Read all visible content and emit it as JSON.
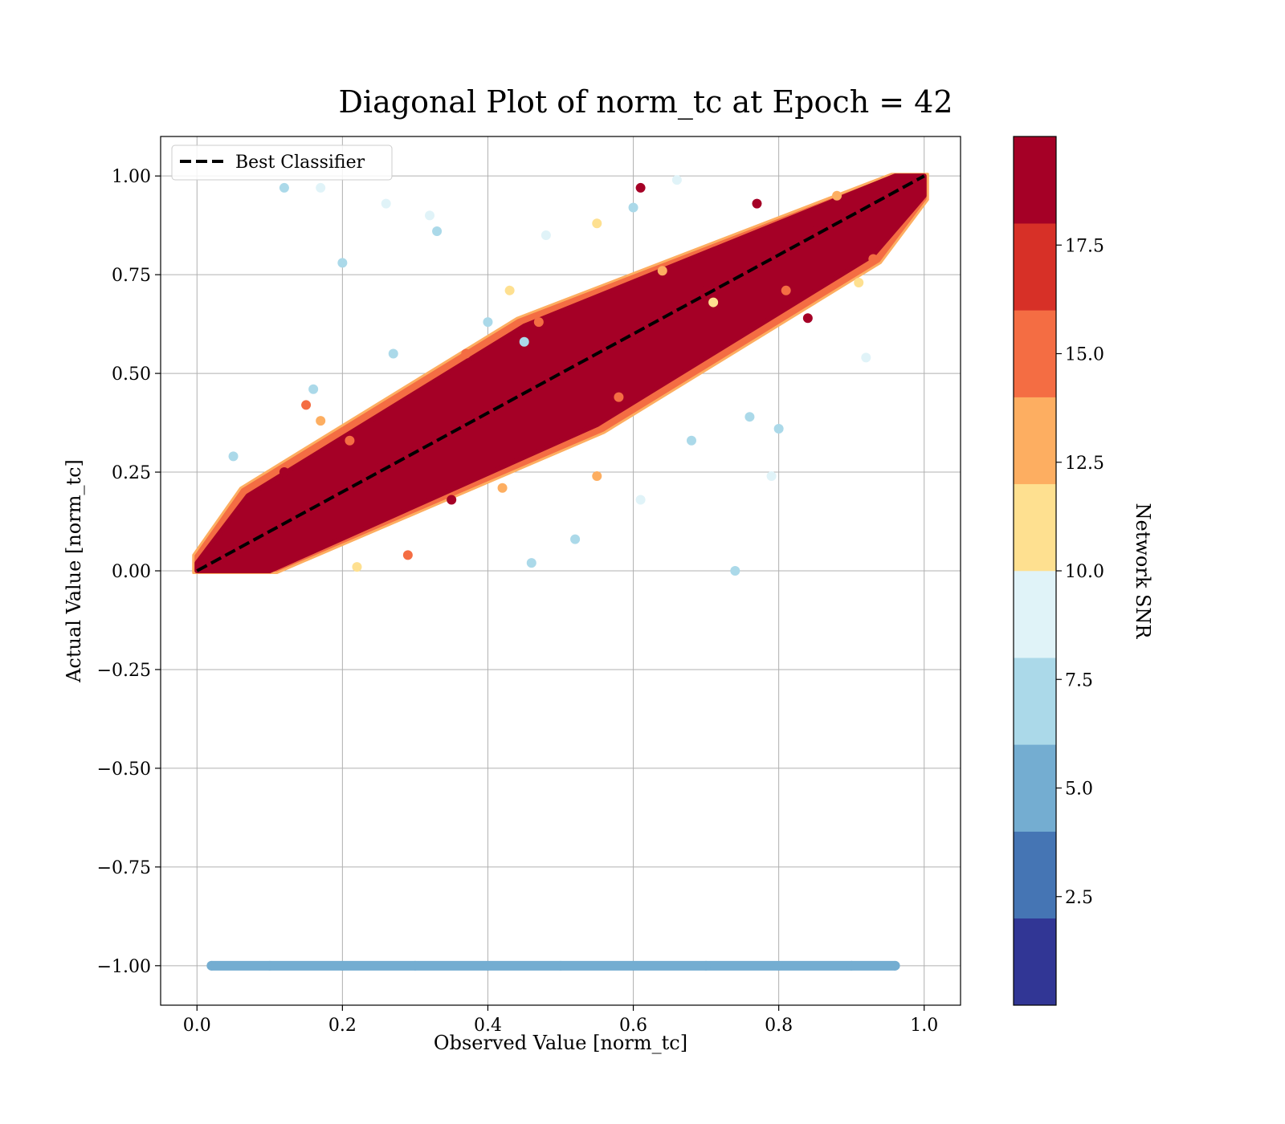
{
  "chart_data": {
    "type": "scatter",
    "title": "Diagonal Plot of norm_tc at Epoch = 42",
    "xlabel": "Observed Value [norm_tc]",
    "ylabel": "Actual Value [norm_tc]",
    "xlim": [
      -0.05,
      1.05
    ],
    "ylim": [
      -1.1,
      1.1
    ],
    "x_ticks": [
      "0.0",
      "0.2",
      "0.4",
      "0.6",
      "0.8",
      "1.0"
    ],
    "x_tick_values": [
      0.0,
      0.2,
      0.4,
      0.6,
      0.8,
      1.0
    ],
    "y_ticks": [
      "1.00",
      "0.75",
      "0.50",
      "0.25",
      "0.00",
      "−0.25",
      "−0.50",
      "−0.75",
      "−1.00"
    ],
    "y_tick_values": [
      1.0,
      0.75,
      0.5,
      0.25,
      0.0,
      -0.25,
      -0.5,
      -0.75,
      -1.0
    ],
    "grid": true,
    "legend": {
      "position": "top-left",
      "entries": [
        {
          "label": "Best Classifier",
          "style": "dashed",
          "color": "#000000"
        }
      ]
    },
    "reference_line": {
      "name": "Best Classifier",
      "x": [
        0.0,
        1.0
      ],
      "y": [
        0.0,
        1.0
      ],
      "color": "#000000"
    },
    "series": [
      {
        "color": "#a50026",
        "points": [
          [
            0.05,
            0.06
          ],
          [
            0.1,
            0.1
          ],
          [
            0.15,
            0.16
          ],
          [
            0.2,
            0.19
          ],
          [
            0.25,
            0.26
          ],
          [
            0.3,
            0.3
          ],
          [
            0.35,
            0.34
          ],
          [
            0.4,
            0.41
          ],
          [
            0.45,
            0.45
          ],
          [
            0.5,
            0.5
          ],
          [
            0.55,
            0.56
          ],
          [
            0.6,
            0.59
          ],
          [
            0.65,
            0.65
          ],
          [
            0.7,
            0.71
          ],
          [
            0.75,
            0.75
          ],
          [
            0.8,
            0.8
          ],
          [
            0.85,
            0.86
          ],
          [
            0.9,
            0.9
          ],
          [
            0.95,
            0.95
          ],
          [
            0.77,
            0.93
          ],
          [
            0.84,
            0.64
          ],
          [
            0.61,
            0.97
          ],
          [
            0.35,
            0.18
          ],
          [
            0.12,
            0.25
          ]
        ]
      },
      {
        "color": "#f46d43",
        "points": [
          [
            0.15,
            0.42
          ],
          [
            0.21,
            0.33
          ],
          [
            0.29,
            0.04
          ],
          [
            0.37,
            0.55
          ],
          [
            0.47,
            0.63
          ],
          [
            0.58,
            0.44
          ],
          [
            0.81,
            0.71
          ],
          [
            0.93,
            0.79
          ]
        ]
      },
      {
        "color": "#fdae61",
        "points": [
          [
            0.17,
            0.38
          ],
          [
            0.42,
            0.21
          ],
          [
            0.55,
            0.24
          ],
          [
            0.64,
            0.76
          ],
          [
            0.88,
            0.95
          ]
        ]
      },
      {
        "color": "#fee090",
        "points": [
          [
            0.22,
            0.01
          ],
          [
            0.43,
            0.71
          ],
          [
            0.55,
            0.88
          ],
          [
            0.71,
            0.68
          ],
          [
            0.91,
            0.73
          ]
        ]
      },
      {
        "color": "#e0f3f8",
        "points": [
          [
            0.17,
            0.97
          ],
          [
            0.32,
            0.9
          ],
          [
            0.48,
            0.85
          ],
          [
            0.66,
            0.99
          ],
          [
            0.79,
            0.24
          ],
          [
            0.92,
            0.54
          ],
          [
            0.61,
            0.18
          ],
          [
            0.26,
            0.93
          ]
        ]
      },
      {
        "color": "#abd9e9",
        "points": [
          [
            0.12,
            0.97
          ],
          [
            0.2,
            0.78
          ],
          [
            0.27,
            0.55
          ],
          [
            0.33,
            0.86
          ],
          [
            0.4,
            0.63
          ],
          [
            0.46,
            0.02
          ],
          [
            0.52,
            0.08
          ],
          [
            0.6,
            0.92
          ],
          [
            0.68,
            0.33
          ],
          [
            0.74,
            0.0
          ],
          [
            0.8,
            0.36
          ],
          [
            0.76,
            0.39
          ],
          [
            0.45,
            0.58
          ],
          [
            0.05,
            0.29
          ],
          [
            0.16,
            0.46
          ]
        ]
      },
      {
        "color": "#74add1",
        "points": [
          [
            0.02,
            -1.0
          ],
          [
            0.1,
            -1.0
          ],
          [
            0.2,
            -1.0
          ],
          [
            0.3,
            -1.0
          ],
          [
            0.4,
            -1.0
          ],
          [
            0.5,
            -1.0
          ],
          [
            0.6,
            -1.0
          ],
          [
            0.7,
            -1.0
          ],
          [
            0.8,
            -1.0
          ],
          [
            0.9,
            -1.0
          ],
          [
            0.96,
            -1.0
          ]
        ]
      }
    ],
    "colorbar": {
      "label": "Network SNR",
      "range": [
        0,
        20
      ],
      "ticks": [
        "2.5",
        "5.0",
        "7.5",
        "10.0",
        "12.5",
        "15.0",
        "17.5"
      ],
      "tick_values": [
        2.5,
        5.0,
        7.5,
        10.0,
        12.5,
        15.0,
        17.5
      ],
      "colors": [
        "#313695",
        "#4575b4",
        "#74add1",
        "#abd9e9",
        "#e0f3f8",
        "#fee090",
        "#fdae61",
        "#f46d43",
        "#d73027",
        "#a50026"
      ]
    }
  }
}
